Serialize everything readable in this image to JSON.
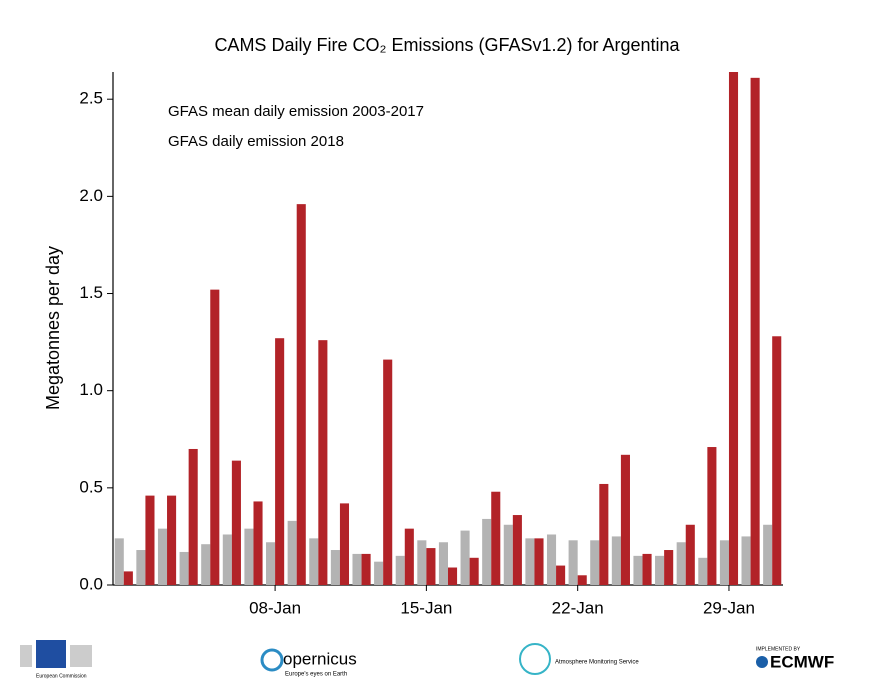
{
  "chart_data": {
    "type": "bar",
    "title": "CAMS Daily Fire CO₂ Emissions (GFASv1.2) for Argentina",
    "y_label": "Megatonnes per day",
    "categories": [
      null,
      null,
      null,
      null,
      null,
      null,
      null,
      "08-Jan",
      null,
      null,
      null,
      null,
      null,
      null,
      "15-Jan",
      null,
      null,
      null,
      null,
      null,
      null,
      "22-Jan",
      null,
      null,
      null,
      null,
      null,
      null,
      "29-Jan",
      null,
      null
    ],
    "series": [
      {
        "name": "GFAS mean daily emission 2003-2017",
        "color": "#b3b3b3",
        "values": [
          0.24,
          0.18,
          0.29,
          0.17,
          0.21,
          0.26,
          0.29,
          0.22,
          0.33,
          0.24,
          0.18,
          0.16,
          0.12,
          0.15,
          0.23,
          0.22,
          0.28,
          0.34,
          0.31,
          0.24,
          0.26,
          0.23,
          0.23,
          0.25,
          0.15,
          0.15,
          0.22,
          0.14,
          0.23,
          0.25,
          0.31
        ]
      },
      {
        "name": "GFAS daily emission 2018",
        "color": "#b22328",
        "values": [
          0.07,
          0.46,
          0.46,
          0.7,
          1.52,
          0.64,
          0.43,
          1.27,
          1.96,
          1.26,
          0.42,
          0.16,
          1.16,
          0.29,
          0.19,
          0.09,
          0.14,
          0.48,
          0.36,
          0.24,
          0.1,
          0.05,
          0.52,
          0.67,
          0.16,
          0.18,
          0.31,
          0.71,
          2.64,
          2.61,
          1.28
        ]
      }
    ],
    "ylim": [
      0,
      2.64
    ],
    "yticks": [
      {
        "value": 0,
        "label": "0.0"
      },
      0.5,
      {
        "value": 1,
        "label": "1.0"
      },
      1.5,
      {
        "value": 2,
        "label": "2.0"
      },
      2.5
    ],
    "legend": "upper left",
    "grid": false
  },
  "logos": {
    "eu": "European Commission",
    "copernicus": "opernicus",
    "copernicus_tagline": "Europe's eyes on Earth",
    "cams": "Atmosphere Monitoring Service",
    "implemented": "IMPLEMENTED BY",
    "ecmwf": "ECMWF"
  }
}
